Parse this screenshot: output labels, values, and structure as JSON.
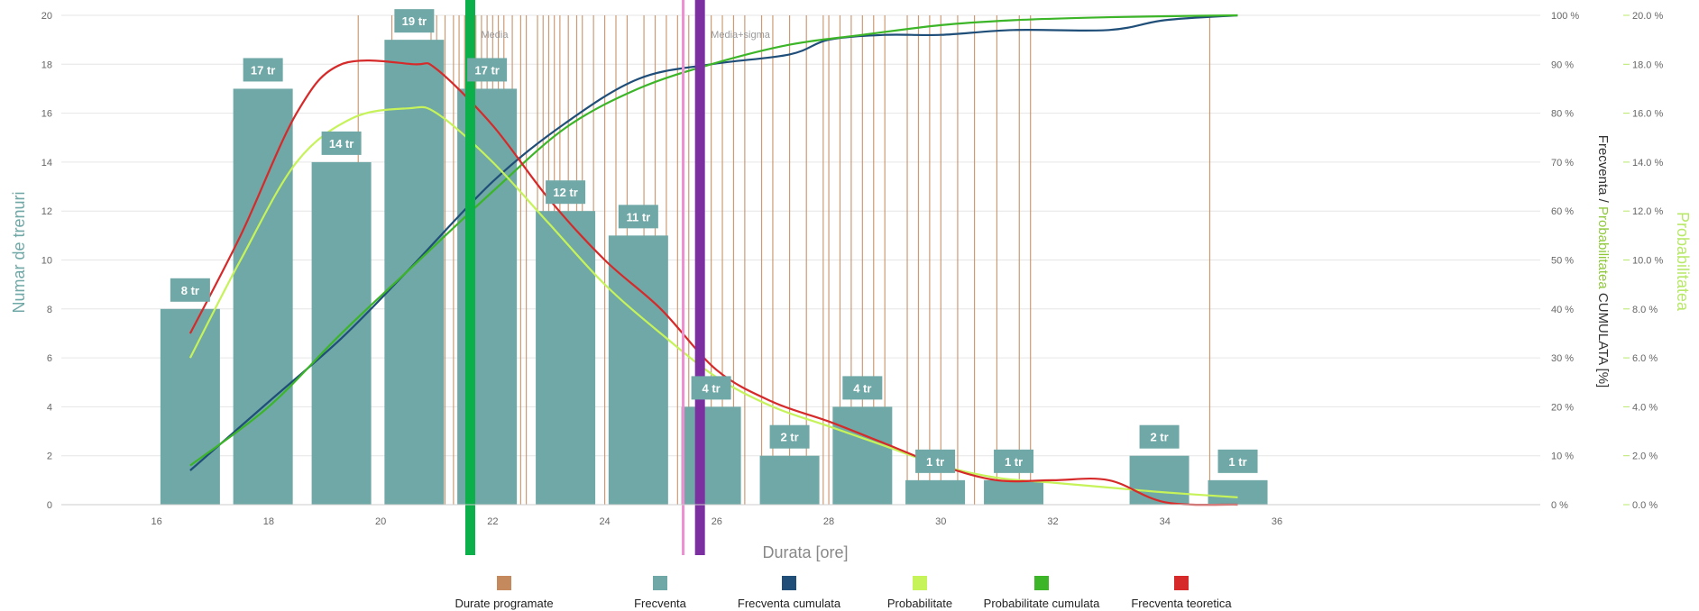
{
  "chart_data": {
    "type": "bar",
    "xlabel": "Durata [ore]",
    "ylabel": "Numar de trenuri",
    "y2label_parts": [
      "Frecventa / ",
      "Probabilitatea",
      " CUMULATA [%]"
    ],
    "y3label": "Probabilitatea",
    "xlim": [
      14.3,
      40.7
    ],
    "ylim": [
      0,
      20
    ],
    "y2lim": [
      0,
      100
    ],
    "y3lim": [
      0,
      20
    ],
    "xticks": [
      16,
      18,
      20,
      22,
      24,
      26,
      28,
      30,
      32,
      34,
      36
    ],
    "yticks": [
      0,
      2,
      4,
      6,
      8,
      10,
      12,
      14,
      16,
      18,
      20
    ],
    "y2ticks": [
      "0 %",
      "10 %",
      "20 %",
      "30 %",
      "40 %",
      "50 %",
      "60 %",
      "70 %",
      "80 %",
      "90 %",
      "100 %"
    ],
    "y3ticks": [
      "0.0 %",
      "2.0 %",
      "4.0 %",
      "6.0 %",
      "8.0 %",
      "10.0 %",
      "12.0 %",
      "14.0 %",
      "16.0 %",
      "18.0 %",
      "20.0 %"
    ],
    "grid": true,
    "legend_position": "bottom",
    "colors": {
      "durate": "#c48a5e",
      "frecventa": "#6fa8a6",
      "frecventa_cumulata": "#1f4e79",
      "probabilitate": "#c6f25a",
      "probabilitate_cumulata": "#3cb528",
      "frecventa_teoretica": "#d62a2a",
      "media_line": "#0bb04a",
      "sigma_line": "#7b2fa0",
      "pink_line": "#ee8fd0",
      "label_bg": "#6fa8a6"
    },
    "bars": {
      "x": [
        16.6,
        17.9,
        19.3,
        20.6,
        21.9,
        23.3,
        24.6,
        25.9,
        27.3,
        28.6,
        29.9,
        31.3,
        33.9,
        35.3
      ],
      "values": [
        8,
        17,
        14,
        19,
        17,
        12,
        11,
        4,
        2,
        4,
        1,
        1,
        2,
        1
      ],
      "labels": [
        "8 tr",
        "17 tr",
        "14 tr",
        "19 tr",
        "17 tr",
        "12 tr",
        "11 tr",
        "4 tr",
        "2 tr",
        "4 tr",
        "1 tr",
        "1 tr",
        "2 tr",
        "1 tr"
      ]
    },
    "series": [
      {
        "name": "Frecventa cumulata",
        "axis": "y2",
        "x": [
          16.6,
          18.0,
          19.3,
          20.5,
          22.0,
          23.3,
          24.6,
          25.9,
          27.3,
          28.0,
          29.0,
          30.0,
          31.3,
          33.0,
          34.0,
          35.3
        ],
        "values": [
          7,
          21,
          34,
          48,
          66,
          78,
          87,
          90,
          92,
          95,
          96,
          96,
          97,
          97,
          99,
          100
        ]
      },
      {
        "name": "Probabilitate cumulata",
        "axis": "y2",
        "x": [
          16.6,
          18.0,
          19.3,
          20.6,
          22.0,
          23.3,
          24.6,
          25.9,
          27.3,
          28.6,
          30.0,
          31.3,
          32.6,
          33.9,
          35.3
        ],
        "values": [
          8,
          20,
          35,
          49,
          64,
          77,
          85,
          90,
          94,
          96,
          98,
          99,
          99.5,
          99.8,
          100
        ]
      },
      {
        "name": "Probabilitate",
        "axis": "y3",
        "x": [
          16.6,
          17.5,
          18.5,
          19.5,
          20.5,
          21.0,
          22.0,
          23.0,
          24.0,
          25.0,
          26.0,
          27.0,
          28.0,
          29.0,
          30.0,
          31.0,
          32.0,
          33.0,
          34.0,
          35.3
        ],
        "values": [
          6,
          10,
          14,
          15.8,
          16.2,
          16.0,
          14,
          11.5,
          9,
          7,
          5.2,
          4,
          3.2,
          2.4,
          1.6,
          1.1,
          0.9,
          0.7,
          0.5,
          0.3
        ]
      },
      {
        "name": "Frecventa teoretica",
        "axis": "y",
        "x": [
          16.6,
          17.5,
          18.5,
          19.3,
          20.6,
          21.0,
          22.0,
          23.0,
          24.0,
          25.0,
          26.0,
          27.0,
          28.0,
          29.0,
          30.0,
          31.0,
          32.0,
          33.0,
          34.0,
          35.3
        ],
        "values": [
          7,
          11,
          16,
          18,
          18,
          17.8,
          15.5,
          12.5,
          10,
          8,
          5.5,
          4.2,
          3.4,
          2.5,
          1.6,
          1.0,
          1.0,
          1.0,
          0.1,
          0
        ]
      }
    ],
    "durate_programate": [
      19.6,
      20.2,
      20.9,
      21.0,
      21.15,
      21.3,
      21.4,
      21.5,
      21.6,
      21.7,
      21.8,
      21.9,
      22.0,
      22.1,
      22.2,
      22.35,
      22.5,
      22.6,
      22.8,
      22.9,
      23.0,
      23.1,
      23.2,
      23.35,
      23.5,
      23.6,
      23.8,
      24.0,
      24.2,
      24.4,
      24.7,
      24.9,
      25.1,
      25.3,
      25.5,
      25.75,
      25.9,
      26.1,
      26.3,
      26.5,
      26.8,
      27.0,
      27.3,
      27.6,
      27.9,
      28.0,
      28.2,
      28.4,
      28.6,
      28.8,
      29.0,
      29.4,
      29.6,
      29.8,
      30.0,
      30.3,
      30.6,
      31.0,
      31.4,
      31.6,
      34.8
    ],
    "vlines": [
      {
        "x": 21.6,
        "color_key": "media_line",
        "label": "Media"
      },
      {
        "x": 25.4,
        "color_key": "pink_line",
        "label": ""
      },
      {
        "x": 25.7,
        "color_key": "sigma_line",
        "label": "Media+sigma"
      }
    ],
    "legend": [
      {
        "label": "Durate programate",
        "color_key": "durate"
      },
      {
        "label": "Frecventa",
        "color_key": "frecventa"
      },
      {
        "label": "Frecventa cumulata",
        "color_key": "frecventa_cumulata"
      },
      {
        "label": "Probabilitate",
        "color_key": "probabilitate"
      },
      {
        "label": "Probabilitate cumulata",
        "color_key": "probabilitate_cumulata"
      },
      {
        "label": "Frecventa teoretica",
        "color_key": "frecventa_teoretica"
      }
    ]
  }
}
